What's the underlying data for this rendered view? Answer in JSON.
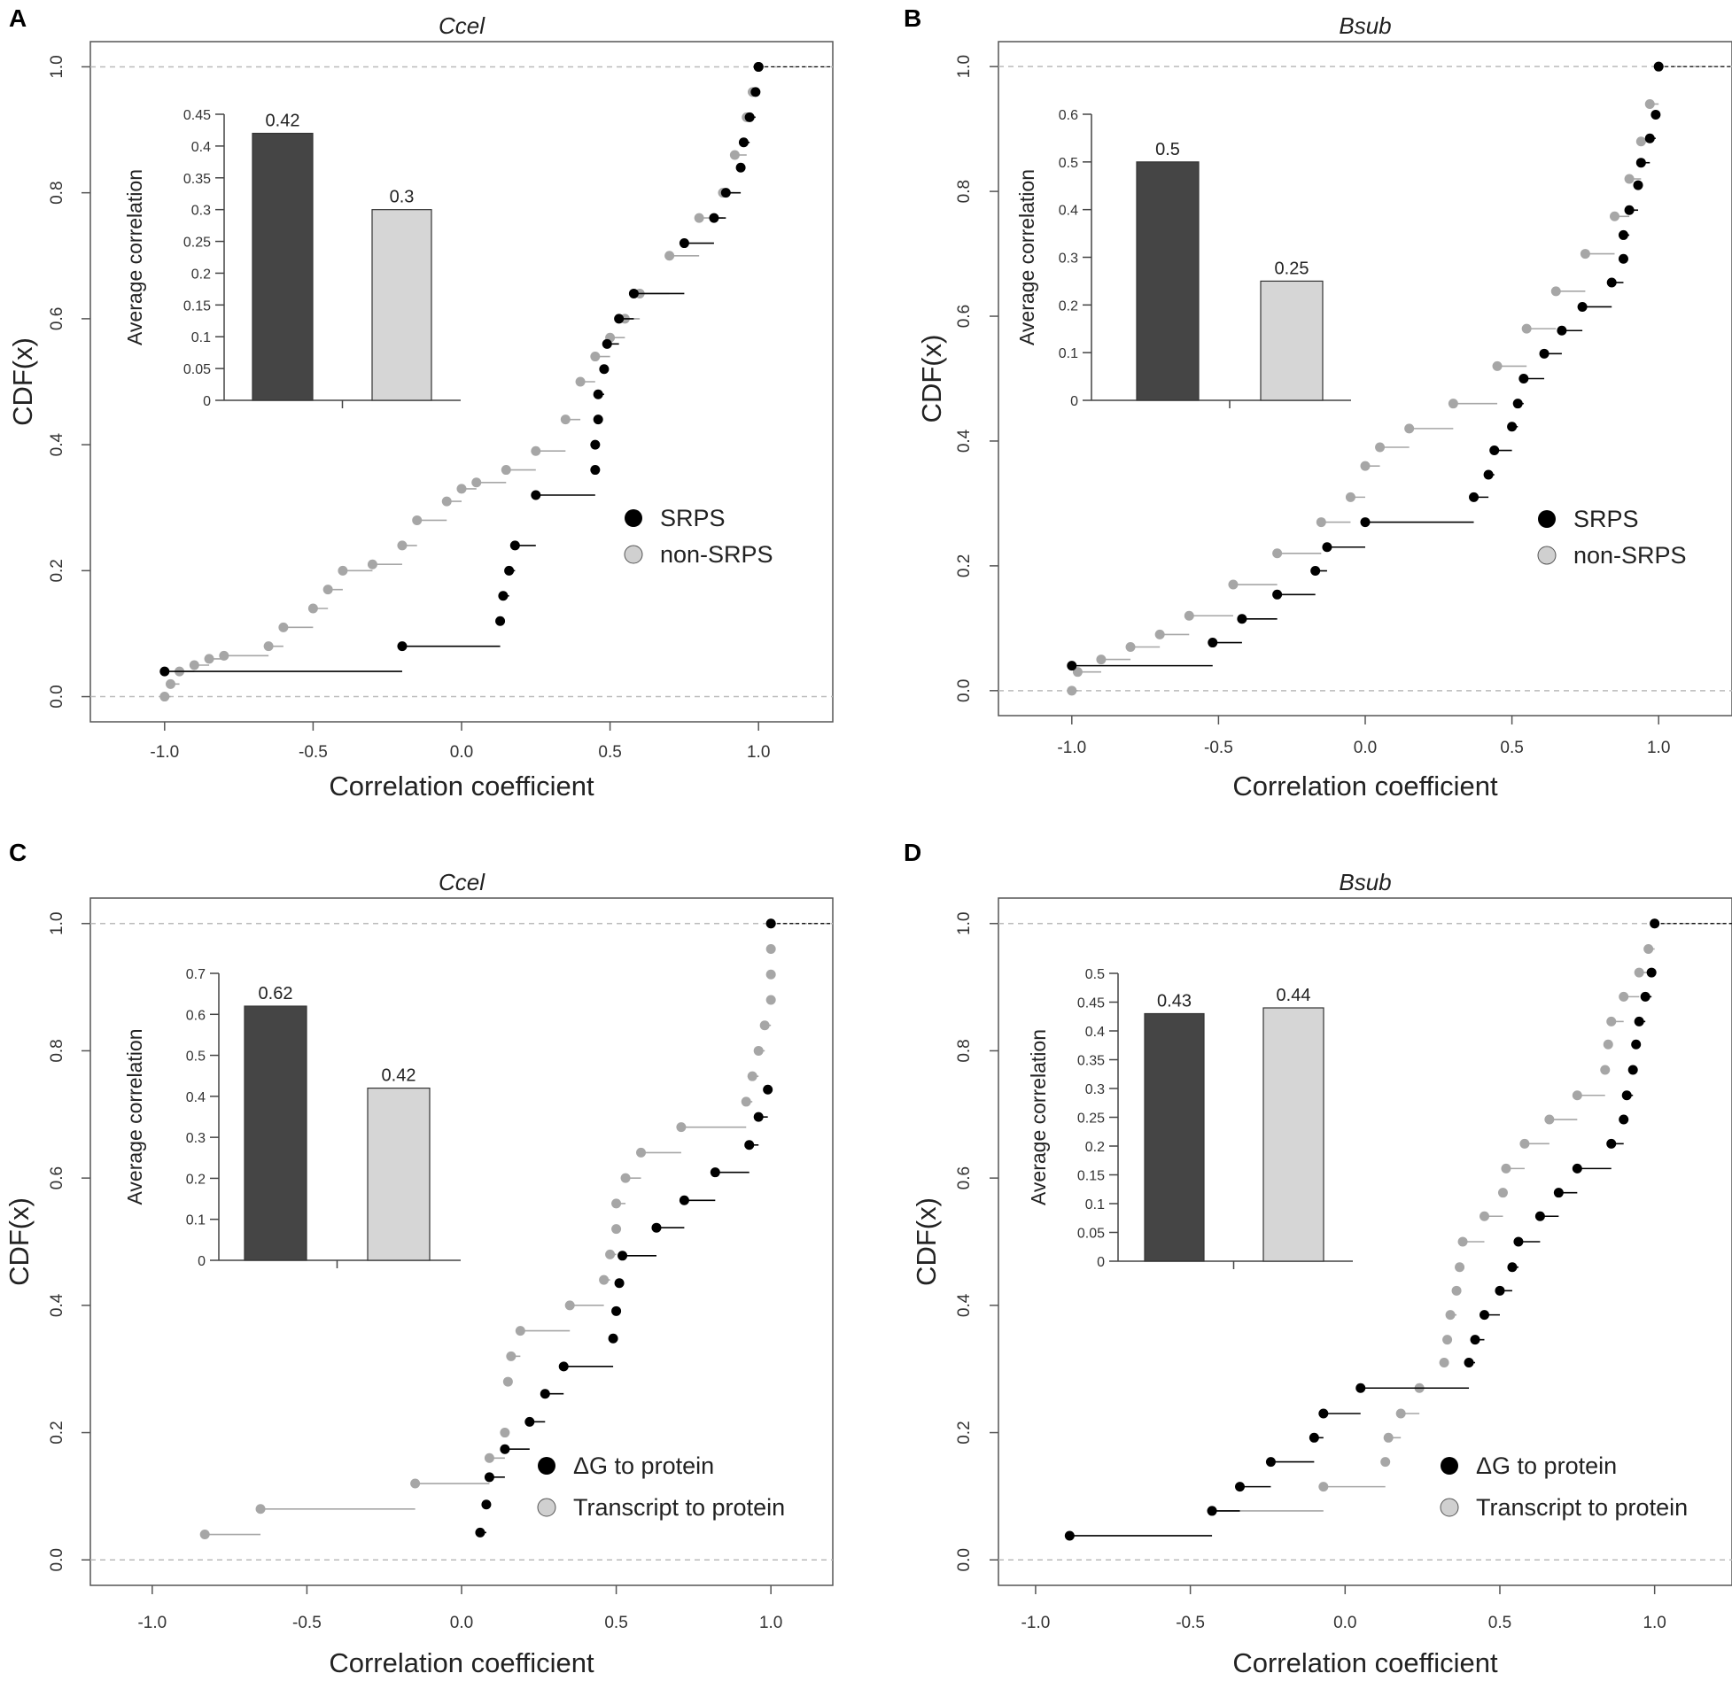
{
  "figure": {
    "colors": {
      "srps": "#000000",
      "non_srps": "#a6a6a6",
      "bar_dark": "#454545",
      "bar_light": "#d6d6d6",
      "axis": "#555555",
      "refline": "#bbbbbb"
    }
  },
  "chart_data": [
    {
      "id": "A",
      "panel_label": "A",
      "type": "scatter",
      "title": "Ccel",
      "xlabel": "Correlation coefficient",
      "ylabel": "CDF(x)",
      "xlim": [
        -1.25,
        1.25
      ],
      "ylim": [
        -0.04,
        1.04
      ],
      "xticks": [
        -1.0,
        -0.5,
        0.0,
        0.5,
        1.0
      ],
      "xtick_labels": [
        "-1.0",
        "-0.5",
        "0.0",
        "0.5",
        "1.0"
      ],
      "yticks": [
        0.0,
        0.2,
        0.4,
        0.6,
        0.8,
        1.0
      ],
      "ytick_labels": [
        "0.0",
        "0.2",
        "0.4",
        "0.6",
        "0.8",
        "1.0"
      ],
      "legend": [
        {
          "name": "SRPS",
          "color": "#000000"
        },
        {
          "name": "non-SRPS",
          "color": "#d0d0d0"
        }
      ],
      "series": [
        {
          "name": "SRPS",
          "color": "#000000",
          "x": [
            -1.0,
            -0.2,
            0.13,
            0.14,
            0.16,
            0.18,
            0.25,
            0.45,
            0.45,
            0.46,
            0.46,
            0.48,
            0.49,
            0.53,
            0.58,
            0.75,
            0.85,
            0.89,
            0.94,
            0.95,
            0.97,
            0.99,
            1.0,
            1.0
          ],
          "y": [
            0.04,
            0.08,
            0.12,
            0.16,
            0.2,
            0.24,
            0.32,
            0.36,
            0.4,
            0.44,
            0.48,
            0.52,
            0.56,
            0.6,
            0.64,
            0.72,
            0.76,
            0.8,
            0.84,
            0.88,
            0.92,
            0.96,
            1.0,
            1.0
          ]
        },
        {
          "name": "non-SRPS",
          "color": "#a6a6a6",
          "x": [
            -1.0,
            -0.98,
            -0.95,
            -0.9,
            -0.85,
            -0.8,
            -0.65,
            -0.6,
            -0.5,
            -0.45,
            -0.4,
            -0.3,
            -0.2,
            -0.15,
            -0.05,
            0.0,
            0.05,
            0.15,
            0.25,
            0.35,
            0.4,
            0.45,
            0.5,
            0.55,
            0.6,
            0.7,
            0.8,
            0.88,
            0.92,
            0.96,
            0.98,
            1.0
          ],
          "y": [
            0.0,
            0.02,
            0.04,
            0.05,
            0.06,
            0.065,
            0.08,
            0.11,
            0.14,
            0.17,
            0.2,
            0.21,
            0.24,
            0.28,
            0.31,
            0.33,
            0.34,
            0.36,
            0.39,
            0.44,
            0.5,
            0.54,
            0.57,
            0.6,
            0.64,
            0.7,
            0.76,
            0.8,
            0.86,
            0.92,
            0.96,
            1.0
          ]
        }
      ],
      "inset": {
        "type": "bar",
        "ylabel": "Average correlation",
        "categories": [
          "SRPS",
          "non-SRPS"
        ],
        "values": [
          0.42,
          0.3
        ],
        "value_labels": [
          "0.42",
          "0.3"
        ],
        "ylim": [
          0,
          0.45
        ],
        "yticks": [
          0,
          0.05,
          0.1,
          0.15,
          0.2,
          0.25,
          0.3,
          0.35,
          0.4,
          0.45
        ],
        "ytick_labels": [
          "0",
          "0.05",
          "0.1",
          "0.15",
          "0.2",
          "0.25",
          "0.3",
          "0.35",
          "0.4",
          "0.45"
        ]
      }
    },
    {
      "id": "B",
      "panel_label": "B",
      "type": "scatter",
      "title": "Bsub",
      "xlabel": "Correlation coefficient",
      "ylabel": "CDF(x)",
      "xlim": [
        -1.25,
        1.25
      ],
      "ylim": [
        -0.04,
        1.04
      ],
      "xticks": [
        -1.0,
        -0.5,
        0.0,
        0.5,
        1.0
      ],
      "xtick_labels": [
        "-1.0",
        "-0.5",
        "0.0",
        "0.5",
        "1.0"
      ],
      "yticks": [
        0.0,
        0.2,
        0.4,
        0.6,
        0.8,
        1.0
      ],
      "ytick_labels": [
        "0.0",
        "0.2",
        "0.4",
        "0.6",
        "0.8",
        "1.0"
      ],
      "legend": [
        {
          "name": "SRPS",
          "color": "#000000"
        },
        {
          "name": "non-SRPS",
          "color": "#d0d0d0"
        }
      ],
      "series": [
        {
          "name": "SRPS",
          "color": "#000000",
          "x": [
            -1.0,
            -0.52,
            -0.42,
            -0.3,
            -0.17,
            -0.13,
            0.0,
            0.37,
            0.42,
            0.44,
            0.5,
            0.52,
            0.54,
            0.61,
            0.67,
            0.74,
            0.84,
            0.88,
            0.88,
            0.9,
            0.93,
            0.94,
            0.97,
            0.99,
            1.0
          ],
          "y": [
            0.04,
            0.077,
            0.115,
            0.154,
            0.192,
            0.23,
            0.27,
            0.31,
            0.346,
            0.385,
            0.423,
            0.46,
            0.5,
            0.54,
            0.577,
            0.615,
            0.654,
            0.692,
            0.73,
            0.77,
            0.81,
            0.846,
            0.885,
            0.923,
            1.0
          ]
        },
        {
          "name": "non-SRPS",
          "color": "#a6a6a6",
          "x": [
            -1.0,
            -0.98,
            -0.9,
            -0.8,
            -0.7,
            -0.6,
            -0.45,
            -0.3,
            -0.15,
            -0.05,
            0.0,
            0.05,
            0.15,
            0.3,
            0.45,
            0.55,
            0.65,
            0.75,
            0.85,
            0.9,
            0.94,
            0.97,
            1.0
          ],
          "y": [
            0.0,
            0.03,
            0.05,
            0.07,
            0.09,
            0.12,
            0.17,
            0.22,
            0.27,
            0.31,
            0.36,
            0.39,
            0.42,
            0.46,
            0.52,
            0.58,
            0.64,
            0.7,
            0.76,
            0.82,
            0.88,
            0.94,
            1.0
          ]
        }
      ],
      "inset": {
        "type": "bar",
        "ylabel": "Average correlation",
        "categories": [
          "SRPS",
          "non-SRPS"
        ],
        "values": [
          0.5,
          0.25
        ],
        "value_labels": [
          "0.5",
          "0.25"
        ],
        "ylim": [
          0,
          0.6
        ],
        "yticks": [
          0,
          0.1,
          0.2,
          0.3,
          0.4,
          0.5,
          0.6
        ],
        "ytick_labels": [
          "0",
          "0.1",
          "0.2",
          "0.3",
          "0.4",
          "0.5",
          "0.6"
        ]
      }
    },
    {
      "id": "C",
      "panel_label": "C",
      "type": "scatter",
      "title": "Ccel",
      "xlabel": "Correlation coefficient",
      "ylabel": "CDF(x)",
      "xlim": [
        -1.2,
        1.2
      ],
      "ylim": [
        -0.04,
        1.04
      ],
      "xticks": [
        -1.0,
        -0.5,
        0.0,
        0.5,
        1.0
      ],
      "xtick_labels": [
        "-1.0",
        "-0.5",
        "0.0",
        "0.5",
        "1.0"
      ],
      "yticks": [
        0.0,
        0.2,
        0.4,
        0.6,
        0.8,
        1.0
      ],
      "ytick_labels": [
        "0.0",
        "0.2",
        "0.4",
        "0.6",
        "0.8",
        "1.0"
      ],
      "legend": [
        {
          "name": "ΔG to protein",
          "color": "#000000"
        },
        {
          "name": "Transcript  to protein",
          "color": "#d0d0d0"
        }
      ],
      "series": [
        {
          "name": "ΔG to protein",
          "color": "#000000",
          "x": [
            0.06,
            0.08,
            0.09,
            0.14,
            0.22,
            0.27,
            0.33,
            0.49,
            0.5,
            0.51,
            0.52,
            0.63,
            0.72,
            0.82,
            0.93,
            0.96,
            0.99,
            1.0
          ],
          "y": [
            0.043,
            0.087,
            0.13,
            0.174,
            0.217,
            0.261,
            0.304,
            0.348,
            0.391,
            0.435,
            0.478,
            0.522,
            0.565,
            0.609,
            0.652,
            0.696,
            0.739,
            1.0
          ]
        },
        {
          "name": "Transcript  to protein",
          "color": "#a6a6a6",
          "x": [
            -0.83,
            -0.65,
            -0.15,
            0.09,
            0.14,
            0.15,
            0.16,
            0.19,
            0.35,
            0.46,
            0.48,
            0.5,
            0.5,
            0.53,
            0.58,
            0.71,
            0.92,
            0.94,
            0.96,
            0.98,
            1.0,
            1.0,
            1.0,
            1.0
          ],
          "y": [
            0.04,
            0.08,
            0.12,
            0.16,
            0.2,
            0.28,
            0.32,
            0.36,
            0.4,
            0.44,
            0.48,
            0.52,
            0.56,
            0.6,
            0.64,
            0.68,
            0.72,
            0.76,
            0.8,
            0.84,
            0.88,
            0.92,
            0.96,
            1.0
          ]
        }
      ],
      "inset": {
        "type": "bar",
        "ylabel": "Average correlation",
        "categories": [
          "ΔG to protein",
          "Transcript to protein"
        ],
        "values": [
          0.62,
          0.42
        ],
        "value_labels": [
          "0.62",
          "0.42"
        ],
        "ylim": [
          0,
          0.7
        ],
        "yticks": [
          0,
          0.1,
          0.2,
          0.3,
          0.4,
          0.5,
          0.6,
          0.7
        ],
        "ytick_labels": [
          "0",
          "0.1",
          "0.2",
          "0.3",
          "0.4",
          "0.5",
          "0.6",
          "0.7"
        ]
      }
    },
    {
      "id": "D",
      "panel_label": "D",
      "type": "scatter",
      "title": "Bsub",
      "xlabel": "Correlation coefficient",
      "ylabel": "CDF(x)",
      "xlim": [
        -1.12,
        1.25
      ],
      "ylim": [
        -0.04,
        1.04
      ],
      "xticks": [
        -1.0,
        -0.5,
        0.0,
        0.5,
        1.0
      ],
      "xtick_labels": [
        "-1.0",
        "-0.5",
        "0.0",
        "0.5",
        "1.0"
      ],
      "yticks": [
        0.0,
        0.2,
        0.4,
        0.6,
        0.8,
        1.0
      ],
      "ytick_labels": [
        "0.0",
        "0.2",
        "0.4",
        "0.6",
        "0.8",
        "1.0"
      ],
      "legend": [
        {
          "name": "ΔG to protein",
          "color": "#000000"
        },
        {
          "name": "Transcript to protein",
          "color": "#d0d0d0"
        }
      ],
      "series": [
        {
          "name": "ΔG to protein",
          "color": "#000000",
          "x": [
            -0.89,
            -0.43,
            -0.34,
            -0.24,
            -0.1,
            -0.07,
            0.05,
            0.4,
            0.42,
            0.45,
            0.5,
            0.54,
            0.56,
            0.63,
            0.69,
            0.75,
            0.86,
            0.9,
            0.91,
            0.93,
            0.94,
            0.95,
            0.97,
            0.99,
            1.0
          ],
          "y": [
            0.038,
            0.077,
            0.115,
            0.154,
            0.192,
            0.23,
            0.27,
            0.31,
            0.346,
            0.385,
            0.423,
            0.46,
            0.5,
            0.54,
            0.577,
            0.615,
            0.654,
            0.692,
            0.73,
            0.77,
            0.81,
            0.846,
            0.885,
            0.923,
            1.0
          ]
        },
        {
          "name": "Transcript to protein",
          "color": "#a6a6a6",
          "x": [
            -0.43,
            -0.07,
            0.13,
            0.14,
            0.18,
            0.24,
            0.32,
            0.33,
            0.34,
            0.36,
            0.37,
            0.38,
            0.45,
            0.51,
            0.52,
            0.58,
            0.66,
            0.75,
            0.84,
            0.85,
            0.86,
            0.9,
            0.95,
            0.98,
            1.0
          ],
          "y": [
            0.077,
            0.115,
            0.154,
            0.192,
            0.23,
            0.27,
            0.31,
            0.346,
            0.385,
            0.423,
            0.46,
            0.5,
            0.54,
            0.577,
            0.615,
            0.654,
            0.692,
            0.73,
            0.77,
            0.81,
            0.846,
            0.885,
            0.923,
            0.96,
            1.0
          ]
        }
      ],
      "inset": {
        "type": "bar",
        "ylabel": "Average correlation",
        "categories": [
          "ΔG to protein",
          "Transcript to protein"
        ],
        "values": [
          0.43,
          0.44
        ],
        "value_labels": [
          "0.43",
          "0.44"
        ],
        "ylim": [
          0,
          0.5
        ],
        "yticks": [
          0,
          0.05,
          0.1,
          0.15,
          0.2,
          0.25,
          0.3,
          0.35,
          0.4,
          0.45,
          0.5
        ],
        "ytick_labels": [
          "0",
          "0.05",
          "0.1",
          "0.15",
          "0.2",
          "0.25",
          "0.3",
          "0.35",
          "0.4",
          "0.45",
          "0.5"
        ]
      }
    }
  ]
}
